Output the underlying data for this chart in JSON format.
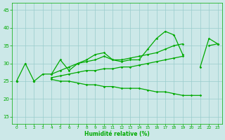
{
  "x": [
    0,
    1,
    2,
    3,
    4,
    5,
    6,
    7,
    8,
    9,
    10,
    11,
    12,
    13,
    14,
    15,
    16,
    17,
    18,
    19,
    20,
    21,
    22,
    23
  ],
  "line_main": [
    25,
    30,
    25,
    27,
    27,
    31,
    28,
    30,
    31,
    32.5,
    33,
    31,
    30.5,
    31,
    31,
    34,
    37,
    39,
    38,
    32.5,
    null,
    29,
    37,
    35.5
  ],
  "line_upper": [
    25,
    null,
    25,
    null,
    27,
    28,
    29,
    30,
    30.5,
    31,
    32,
    31,
    31,
    31.5,
    32,
    32.5,
    33,
    34,
    35,
    35.5,
    null,
    null,
    35,
    35.5
  ],
  "line_lower": [
    25,
    null,
    25,
    null,
    25.5,
    25,
    25,
    24.5,
    24,
    24,
    23.5,
    23.5,
    23,
    23,
    23,
    22.5,
    22,
    22,
    21.5,
    21,
    21,
    21,
    null,
    null
  ],
  "line_mid": [
    25,
    null,
    25,
    null,
    26,
    26.5,
    27,
    27.5,
    28,
    28,
    28.5,
    28.5,
    29,
    29,
    29.5,
    30,
    30.5,
    31,
    31.5,
    32,
    null,
    null,
    null,
    35.5
  ],
  "bg_color": "#cce8e8",
  "line_color": "#00aa00",
  "grid_color": "#99cccc",
  "ylim": [
    13,
    47
  ],
  "xlim": [
    -0.5,
    23.5
  ],
  "yticks": [
    15,
    20,
    25,
    30,
    35,
    40,
    45
  ],
  "xticks": [
    0,
    1,
    2,
    3,
    4,
    5,
    6,
    7,
    8,
    9,
    10,
    11,
    12,
    13,
    14,
    15,
    16,
    17,
    18,
    19,
    20,
    21,
    22,
    23
  ],
  "xlabel": "Humidité relative (%)"
}
